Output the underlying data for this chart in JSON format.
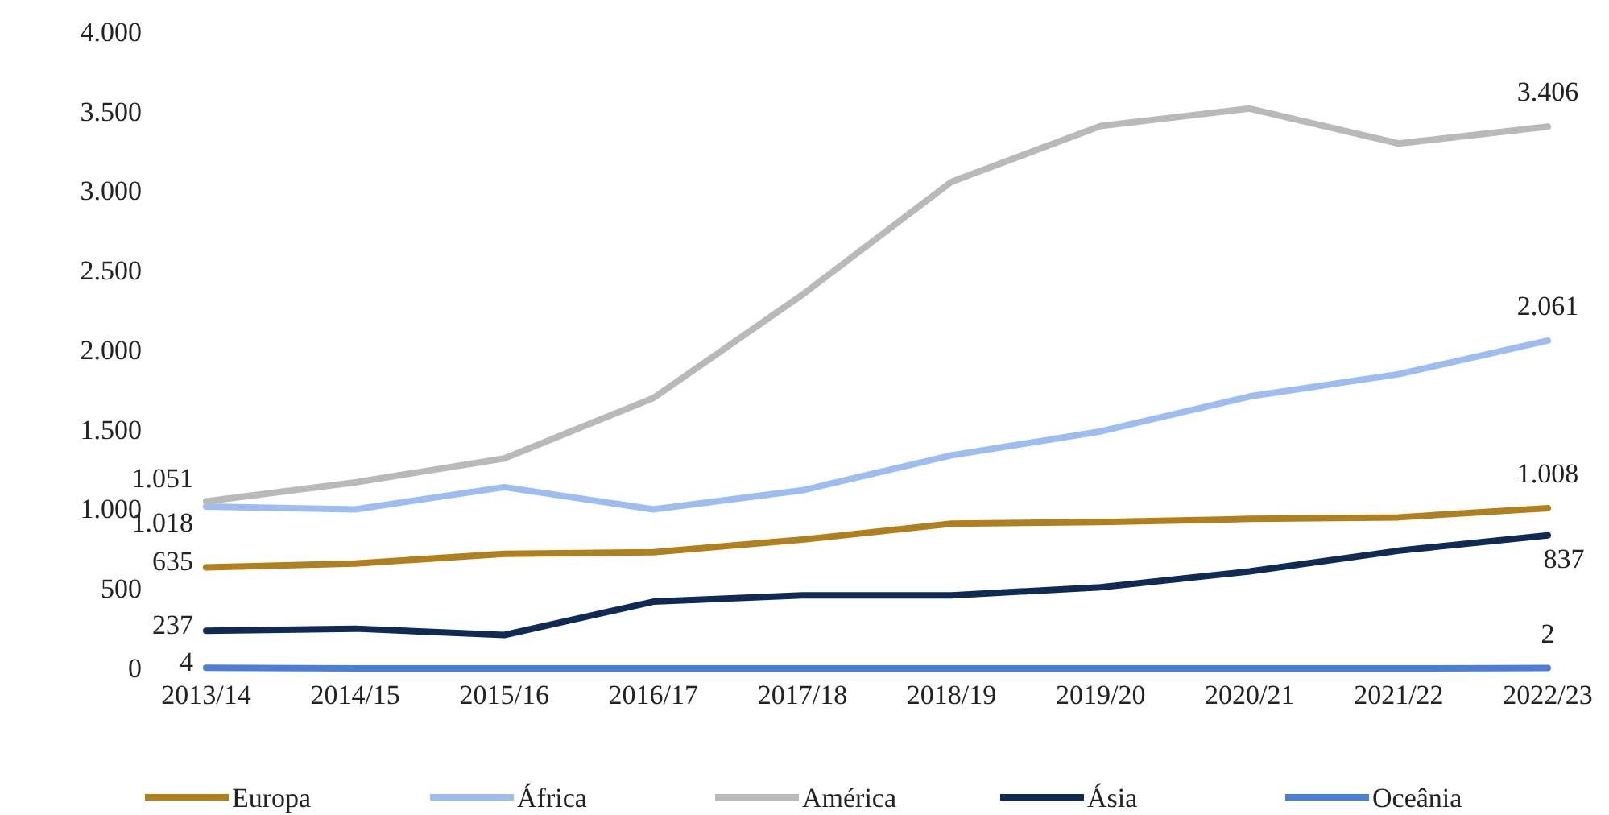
{
  "chart_data": {
    "type": "line",
    "categories": [
      "2013/14",
      "2014/15",
      "2015/16",
      "2016/17",
      "2017/18",
      "2018/19",
      "2019/20",
      "2020/21",
      "2021/22",
      "2022/23"
    ],
    "ylim": [
      0,
      4000
    ],
    "yticks": [
      {
        "value": 0,
        "label": "0"
      },
      {
        "value": 500,
        "label": "500"
      },
      {
        "value": 1000,
        "label": "1.000"
      },
      {
        "value": 1500,
        "label": "1.500"
      },
      {
        "value": 2000,
        "label": "2.000"
      },
      {
        "value": 2500,
        "label": "2.500"
      },
      {
        "value": 3000,
        "label": "3.000"
      },
      {
        "value": 3500,
        "label": "3.500"
      },
      {
        "value": 4000,
        "label": "4.000"
      }
    ],
    "grid": false,
    "legend": "bottom",
    "marker": "none",
    "line_style": "solid",
    "series": [
      {
        "name": "Europa",
        "color": "#b07f1e",
        "values": [
          635,
          660,
          720,
          730,
          810,
          910,
          920,
          940,
          950,
          1008
        ],
        "value_labels": [
          "635",
          null,
          null,
          null,
          null,
          null,
          null,
          null,
          null,
          "1.008"
        ]
      },
      {
        "name": "África",
        "color": "#9dbdf0",
        "values": [
          1018,
          1000,
          1140,
          1000,
          1120,
          1340,
          1490,
          1710,
          1850,
          2061
        ],
        "value_labels": [
          "1.018",
          null,
          null,
          null,
          null,
          null,
          null,
          null,
          null,
          "2.061"
        ]
      },
      {
        "name": "América",
        "color": "#b9b9b9",
        "values": [
          1051,
          1170,
          1320,
          1700,
          2350,
          3060,
          3410,
          3520,
          3300,
          3406
        ],
        "value_labels": [
          "1.051",
          null,
          null,
          null,
          null,
          null,
          null,
          null,
          null,
          "3.406"
        ]
      },
      {
        "name": "Ásia",
        "color": "#0f2a55",
        "values": [
          237,
          250,
          210,
          420,
          460,
          460,
          510,
          610,
          740,
          837
        ],
        "value_labels": [
          "237",
          null,
          null,
          null,
          null,
          null,
          null,
          null,
          null,
          "837"
        ]
      },
      {
        "name": "Oceânia",
        "color": "#4a7fd4",
        "values": [
          4,
          0,
          0,
          0,
          0,
          0,
          0,
          0,
          0,
          2
        ],
        "value_labels": [
          "4",
          null,
          null,
          null,
          null,
          null,
          null,
          null,
          null,
          "2"
        ]
      }
    ]
  }
}
